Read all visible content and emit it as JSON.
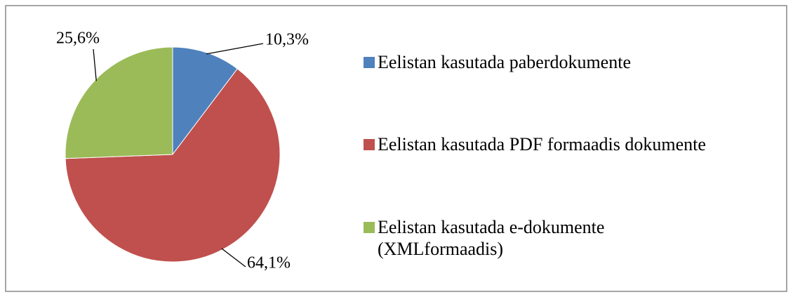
{
  "chart_data": {
    "type": "pie",
    "categories": [
      "Eelistan kasutada paberdokumente",
      "Eelistan kasutada PDF formaadis dokumente",
      "Eelistan kasutada e-dokumente\n(XMLformaadis)"
    ],
    "values": [
      10.3,
      64.1,
      25.6
    ],
    "value_labels": [
      "10,3%",
      "64,1%",
      "25,6%"
    ],
    "colors": [
      "#4f81bd",
      "#c0504d",
      "#9bbb59"
    ],
    "legend": "right"
  }
}
